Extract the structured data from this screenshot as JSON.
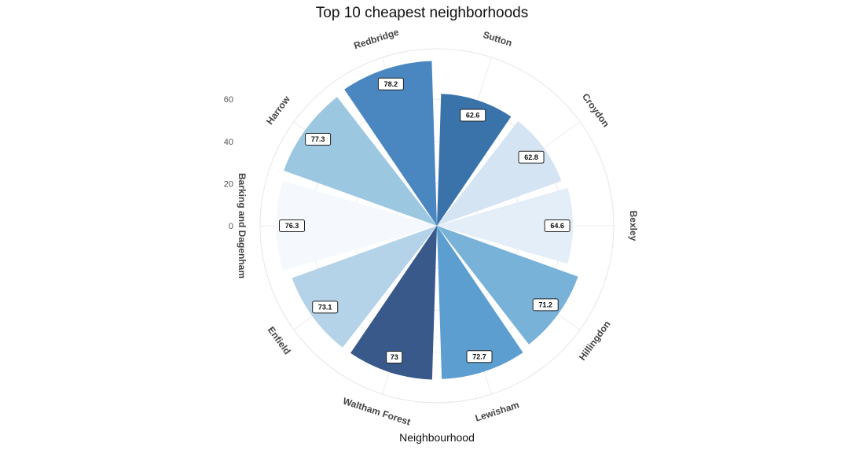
{
  "chart_data": {
    "type": "polar-bar",
    "title": "Top 10 cheapest neighborhoods",
    "xlabel": "Neighbourhood",
    "ylabel": "",
    "y_ticks": [
      "0",
      "20",
      "40",
      "60"
    ],
    "grid": true,
    "legend": "none",
    "categories": [
      "Sutton",
      "Croydon",
      "Bexley",
      "Hillingdon",
      "Lewisham",
      "Waltham Forest",
      "Enfield",
      "Barking and Dagenham",
      "Harrow",
      "Redbridge"
    ],
    "values": [
      62.6,
      62.8,
      64.6,
      71.2,
      72.7,
      73,
      73.1,
      76.3,
      77.3,
      78.2
    ],
    "value_labels": [
      "62.6",
      "62.8",
      "64.6",
      "71.2",
      "72.7",
      "73",
      "73.1",
      "76.3",
      "77.3",
      "78.2"
    ],
    "colors": [
      "#3a73aa",
      "#d5e4f3",
      "#e4eef8",
      "#78b2d8",
      "#5b9ecf",
      "#38598a",
      "#b4d3e8",
      "#f5f9fe",
      "#9cc7e1",
      "#4a87c0"
    ]
  }
}
